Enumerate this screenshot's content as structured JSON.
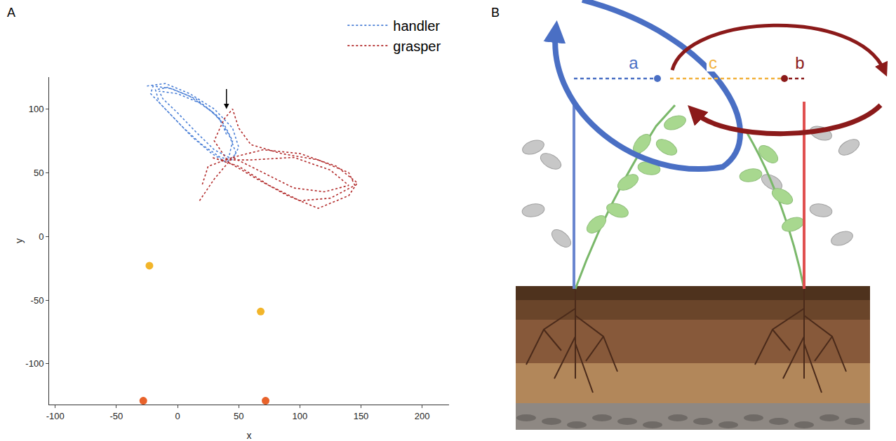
{
  "panel_labels": [
    "A",
    "B"
  ],
  "chart_data": {
    "type": "scatter",
    "xlabel": "x",
    "ylabel": "y",
    "xlim": [
      -105,
      222
    ],
    "ylim": [
      -132,
      125
    ],
    "xticks": [
      -100,
      -50,
      0,
      50,
      100,
      150,
      200
    ],
    "yticks": [
      -100,
      -50,
      0,
      50,
      100
    ],
    "grid": false,
    "legend": "top right",
    "series": [
      {
        "name": "handler",
        "color": "#4a7fd6",
        "type": "line",
        "line_style": "dot",
        "x": [
          -25,
          -10,
          10,
          30,
          45,
          50,
          45,
          35,
          20,
          5,
          -10,
          -22,
          -20,
          -5,
          15,
          32,
          42,
          48,
          40,
          28,
          12,
          -2,
          -15,
          -18,
          -8,
          10,
          28,
          38,
          45,
          42,
          30,
          15,
          0,
          -12,
          -15,
          0,
          20,
          35,
          40
        ],
        "y": [
          118,
          120,
          112,
          100,
          85,
          70,
          60,
          62,
          72,
          85,
          100,
          112,
          118,
          116,
          108,
          95,
          80,
          65,
          58,
          65,
          78,
          92,
          105,
          115,
          117,
          110,
          98,
          88,
          75,
          62,
          68,
          82,
          97,
          108,
          114,
          112,
          104,
          92,
          80
        ]
      },
      {
        "name": "grasper",
        "color": "#b22a2a",
        "type": "line",
        "line_style": "dot",
        "x": [
          18,
          30,
          45,
          70,
          100,
          130,
          147,
          140,
          115,
          90,
          65,
          42,
          30,
          38,
          45,
          50,
          60,
          85,
          115,
          140,
          145,
          125,
          100,
          75,
          50,
          28,
          35,
          60,
          95,
          125,
          140,
          120,
          95,
          70,
          45,
          25,
          20
        ],
        "y": [
          28,
          45,
          62,
          68,
          65,
          55,
          42,
          32,
          22,
          32,
          45,
          58,
          75,
          92,
          100,
          85,
          72,
          65,
          60,
          50,
          40,
          30,
          28,
          40,
          55,
          62,
          60,
          60,
          62,
          52,
          40,
          35,
          38,
          50,
          62,
          55,
          40
        ]
      },
      {
        "color": "#f2b52a",
        "type": "scatter",
        "marker": "circle",
        "x": [
          -23,
          68
        ],
        "y": [
          -23,
          -59
        ]
      },
      {
        "color": "#e8622a",
        "type": "scatter",
        "marker": "circle",
        "x": [
          -28,
          72
        ],
        "y": [
          -129,
          -129
        ]
      }
    ]
  },
  "diagram": {
    "labels": [
      {
        "text": "a",
        "color": "#4a6fc4"
      },
      {
        "text": "c",
        "color": "#f2b23e"
      },
      {
        "text": "b",
        "color": "#8b1a1a"
      }
    ]
  }
}
